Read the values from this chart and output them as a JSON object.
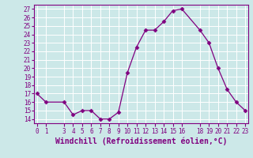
{
  "x": [
    0,
    1,
    3,
    4,
    5,
    6,
    7,
    8,
    9,
    10,
    11,
    12,
    13,
    14,
    15,
    16,
    18,
    19,
    20,
    21,
    22,
    23
  ],
  "y": [
    17,
    16,
    16,
    14.5,
    15,
    15,
    14,
    14,
    14.8,
    19.5,
    22.5,
    24.5,
    24.5,
    25.5,
    26.8,
    27,
    24.5,
    23,
    20,
    17.5,
    16,
    15
  ],
  "xticks": [
    0,
    1,
    3,
    4,
    5,
    6,
    7,
    8,
    9,
    10,
    11,
    12,
    13,
    14,
    15,
    16,
    18,
    19,
    20,
    21,
    22,
    23
  ],
  "yticks": [
    14,
    15,
    16,
    17,
    18,
    19,
    20,
    21,
    22,
    23,
    24,
    25,
    26,
    27
  ],
  "xlim": [
    -0.3,
    23.3
  ],
  "ylim": [
    13.5,
    27.5
  ],
  "xlabel": "Windchill (Refroidissement éolien,°C)",
  "line_color": "#800080",
  "marker": "D",
  "marker_size": 2.5,
  "bg_color": "#cce8e8",
  "grid_color": "#ffffff",
  "tick_fontsize": 5.5,
  "xlabel_fontsize": 7.0,
  "spine_color": "#800080"
}
